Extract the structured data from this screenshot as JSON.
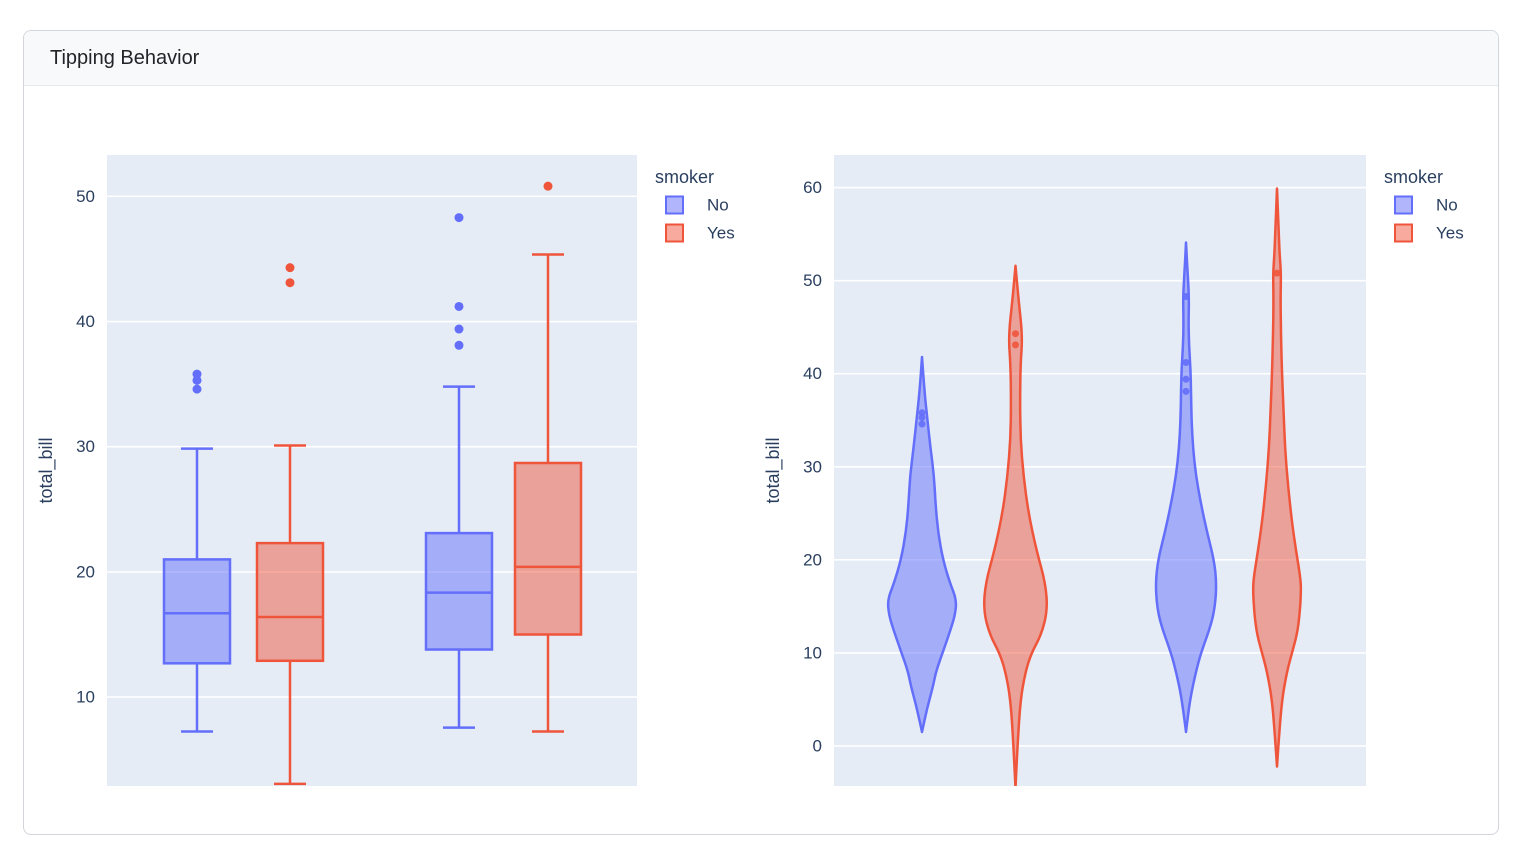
{
  "card": {
    "title": "Tipping Behavior"
  },
  "colors": {
    "no": "#636EFA",
    "yes": "#EF553B",
    "fill_alpha": 0.5,
    "plot_bg": "#E5ECF6",
    "grid": "#FFFFFF",
    "axis_text": "#2A3F5F",
    "card_header_bg": "#f8f9fa",
    "card_border": "#d2d5da"
  },
  "legend": {
    "title": "smoker",
    "items": [
      {
        "label": "No",
        "color": "#636EFA"
      },
      {
        "label": "Yes",
        "color": "#EF553B"
      }
    ]
  },
  "chart_data": [
    {
      "type": "box",
      "title": "",
      "xlabel": "",
      "ylabel": "total_bill",
      "ydomain": [
        2.9,
        53.3
      ],
      "yticks": [
        10,
        20,
        30,
        40,
        50
      ],
      "grid": true,
      "legend_position": "right",
      "legend_title": "smoker",
      "x_categories": [
        "",
        ""
      ],
      "series": [
        {
          "name": "No",
          "color": "#636EFA",
          "boxes": [
            {
              "group": 0,
              "low": 7.25,
              "q1": 12.7,
              "median": 16.7,
              "q3": 21.0,
              "high": 29.85,
              "outliers": [
                34.6,
                35.3,
                35.8
              ]
            },
            {
              "group": 1,
              "low": 7.56,
              "q1": 13.8,
              "median": 18.35,
              "q3": 23.1,
              "high": 34.8,
              "outliers": [
                38.1,
                39.4,
                41.2,
                48.3
              ]
            }
          ]
        },
        {
          "name": "Yes",
          "color": "#EF553B",
          "boxes": [
            {
              "group": 0,
              "low": 3.07,
              "q1": 12.9,
              "median": 16.4,
              "q3": 22.3,
              "high": 30.1,
              "outliers": [
                43.1,
                44.3
              ]
            },
            {
              "group": 1,
              "low": 7.25,
              "q1": 15.0,
              "median": 20.4,
              "q3": 28.7,
              "high": 45.35,
              "outliers": [
                50.81
              ]
            }
          ]
        }
      ]
    },
    {
      "type": "violin",
      "title": "",
      "xlabel": "",
      "ylabel": "total_bill",
      "ydomain": [
        -4.3,
        63.5
      ],
      "yticks": [
        0,
        10,
        20,
        30,
        40,
        50,
        60
      ],
      "grid": true,
      "legend_position": "right",
      "legend_title": "smoker",
      "x_categories": [
        "",
        ""
      ],
      "series": [
        {
          "name": "No",
          "color": "#636EFA",
          "violins": [
            {
              "group": 0,
              "span": [
                1.5,
                41.8
              ],
              "points": [
                34.6,
                35.3,
                35.8
              ],
              "profile": [
                [
                  41.8,
                  0
                ],
                [
                  38,
                  2.5
                ],
                [
                  35,
                  5.5
                ],
                [
                  32,
                  8.5
                ],
                [
                  29,
                  12
                ],
                [
                  26,
                  13.5
                ],
                [
                  23,
                  16
                ],
                [
                  20,
                  21
                ],
                [
                  17.5,
                  28
                ],
                [
                  15.7,
                  34.5
                ],
                [
                  14,
                  33
                ],
                [
                  12,
                  27
                ],
                [
                  10,
                  20.5
                ],
                [
                  8,
                  14
                ],
                [
                  6.4,
                  11
                ],
                [
                  4,
                  5
                ],
                [
                  1.5,
                  0
                ]
              ]
            },
            {
              "group": 1,
              "span": [
                1.5,
                54.1
              ],
              "points": [
                38.1,
                39.4,
                41.2,
                48.3
              ],
              "profile": [
                [
                  54.1,
                  0
                ],
                [
                  51,
                  1.5
                ],
                [
                  48.3,
                  3
                ],
                [
                  45.5,
                  2.5
                ],
                [
                  43,
                  3
                ],
                [
                  40.5,
                  4.5
                ],
                [
                  38,
                  5
                ],
                [
                  35,
                  5.5
                ],
                [
                  32,
                  7
                ],
                [
                  29,
                  10
                ],
                [
                  26,
                  15
                ],
                [
                  23,
                  21
                ],
                [
                  20,
                  28
                ],
                [
                  17.5,
                  30.5
                ],
                [
                  15,
                  29
                ],
                [
                  13,
                  25
                ],
                [
                  10,
                  15
                ],
                [
                  8,
                  10
                ],
                [
                  5,
                  4
                ],
                [
                  1.5,
                  0
                ]
              ]
            }
          ]
        },
        {
          "name": "Yes",
          "color": "#EF553B",
          "violins": [
            {
              "group": 0,
              "span": [
                -4.5,
                51.6
              ],
              "points": [
                43.1,
                44.3
              ],
              "profile": [
                [
                  51.6,
                  0
                ],
                [
                  48,
                  3
                ],
                [
                  44,
                  7
                ],
                [
                  41,
                  5
                ],
                [
                  37,
                  4.5
                ],
                [
                  33,
                  5
                ],
                [
                  29,
                  8
                ],
                [
                  25,
                  13
                ],
                [
                  21,
                  21
                ],
                [
                  17.5,
                  30
                ],
                [
                  14.6,
                  32
                ],
                [
                  12,
                  26
                ],
                [
                  10,
                  16
                ],
                [
                  8,
                  10
                ],
                [
                  5,
                  5
                ],
                [
                  0,
                  2
                ],
                [
                  -4.5,
                  0
                ]
              ]
            },
            {
              "group": 1,
              "span": [
                -2.2,
                59.9
              ],
              "points": [
                50.81
              ],
              "profile": [
                [
                  59.9,
                  0
                ],
                [
                  56,
                  1.5
                ],
                [
                  53,
                  2.5
                ],
                [
                  50.8,
                  4
                ],
                [
                  48,
                  3.5
                ],
                [
                  44,
                  4
                ],
                [
                  40,
                  5
                ],
                [
                  36,
                  6.5
                ],
                [
                  32,
                  8
                ],
                [
                  28,
                  11
                ],
                [
                  24,
                  15
                ],
                [
                  21,
                  19
                ],
                [
                  18,
                  23.5
                ],
                [
                  16.5,
                  24
                ],
                [
                  14,
                  22.5
                ],
                [
                  12,
                  20
                ],
                [
                  10,
                  15
                ],
                [
                  8,
                  10
                ],
                [
                  5,
                  5
                ],
                [
                  1,
                  2
                ],
                [
                  -2.2,
                  0
                ]
              ]
            }
          ]
        }
      ]
    }
  ]
}
